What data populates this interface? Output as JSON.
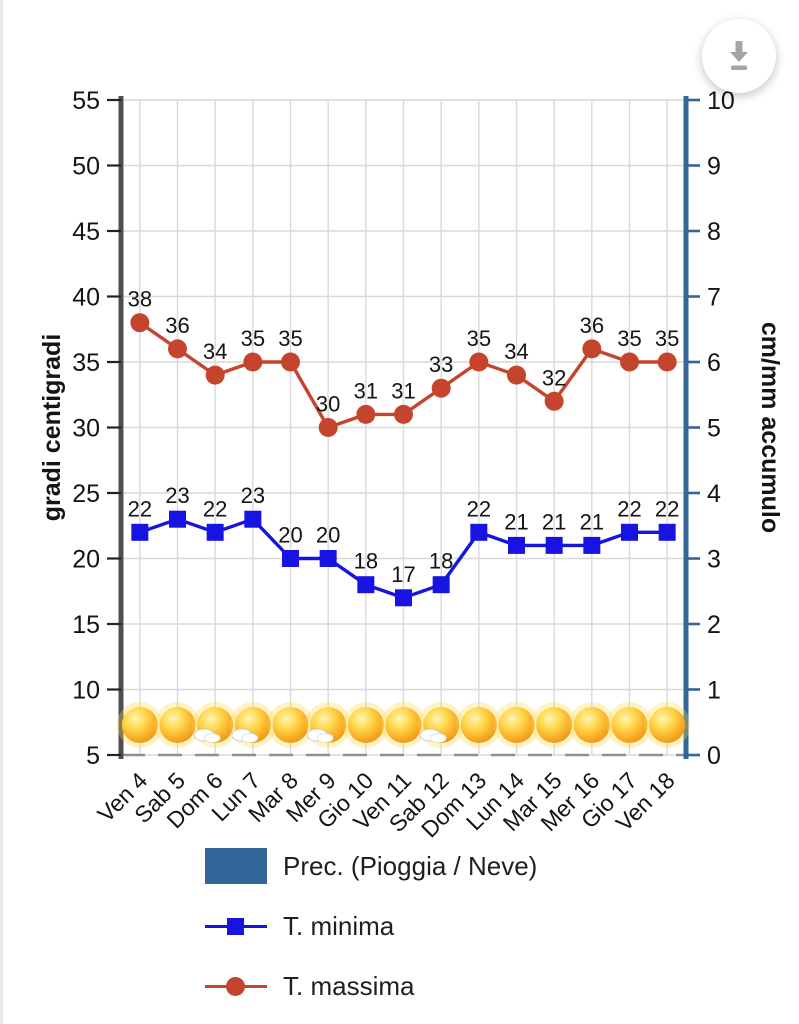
{
  "toolbar": {
    "download_button": {
      "icon": "download-icon",
      "icon_color": "#a5a5a5",
      "background": "#ffffff"
    }
  },
  "chart_data": {
    "type": "line",
    "categories": [
      "Ven 4",
      "Sab 5",
      "Dom 6",
      "Lun 7",
      "Mar 8",
      "Mer 9",
      "Gio 10",
      "Ven 11",
      "Sab 12",
      "Dom 13",
      "Lun 14",
      "Mar 15",
      "Mer 16",
      "Gio 17",
      "Ven 18"
    ],
    "series": [
      {
        "name": "T. massima",
        "marker": "circle",
        "color": "#c5442e",
        "values": [
          38,
          36,
          34,
          35,
          35,
          30,
          31,
          31,
          33,
          35,
          34,
          32,
          36,
          35,
          35
        ]
      },
      {
        "name": "T. minima",
        "marker": "square",
        "color": "#1713e0",
        "values": [
          22,
          23,
          22,
          23,
          20,
          20,
          18,
          17,
          18,
          22,
          21,
          21,
          21,
          22,
          22
        ]
      }
    ],
    "y_left": {
      "label": "gradi centigradi",
      "min": 5,
      "max": 55,
      "step": 5,
      "axis_color": "#4f4f52",
      "tick_color": "#222222",
      "text_color": "#141414"
    },
    "y_right": {
      "label": "cm/mm accumulo",
      "min": 0,
      "max": 10,
      "step": 1,
      "axis_color": "#34669a",
      "tick_color": "#34669a",
      "text_color": "#141414"
    },
    "grid": true,
    "grid_color": "#d9d9d9",
    "x_axis_line_color": "#8a9099",
    "data_label_color": "#141414",
    "weather_icons": [
      "sun",
      "sun",
      "sun-small-cloud",
      "sun-small-cloud",
      "sun",
      "sun-small-cloud",
      "sun",
      "sun",
      "sun-small-cloud",
      "sun",
      "sun",
      "sun",
      "sun",
      "sun",
      "sun"
    ],
    "legend_position": "bottom-left"
  },
  "legend": {
    "items": [
      {
        "label": "Prec. (Pioggia / Neve)",
        "swatch": "rect",
        "color": "#34669a"
      },
      {
        "label": "T. minima",
        "swatch": "line-square",
        "color": "#1713e0"
      },
      {
        "label": "T. massima",
        "swatch": "line-circle",
        "color": "#c5442e"
      }
    ]
  }
}
